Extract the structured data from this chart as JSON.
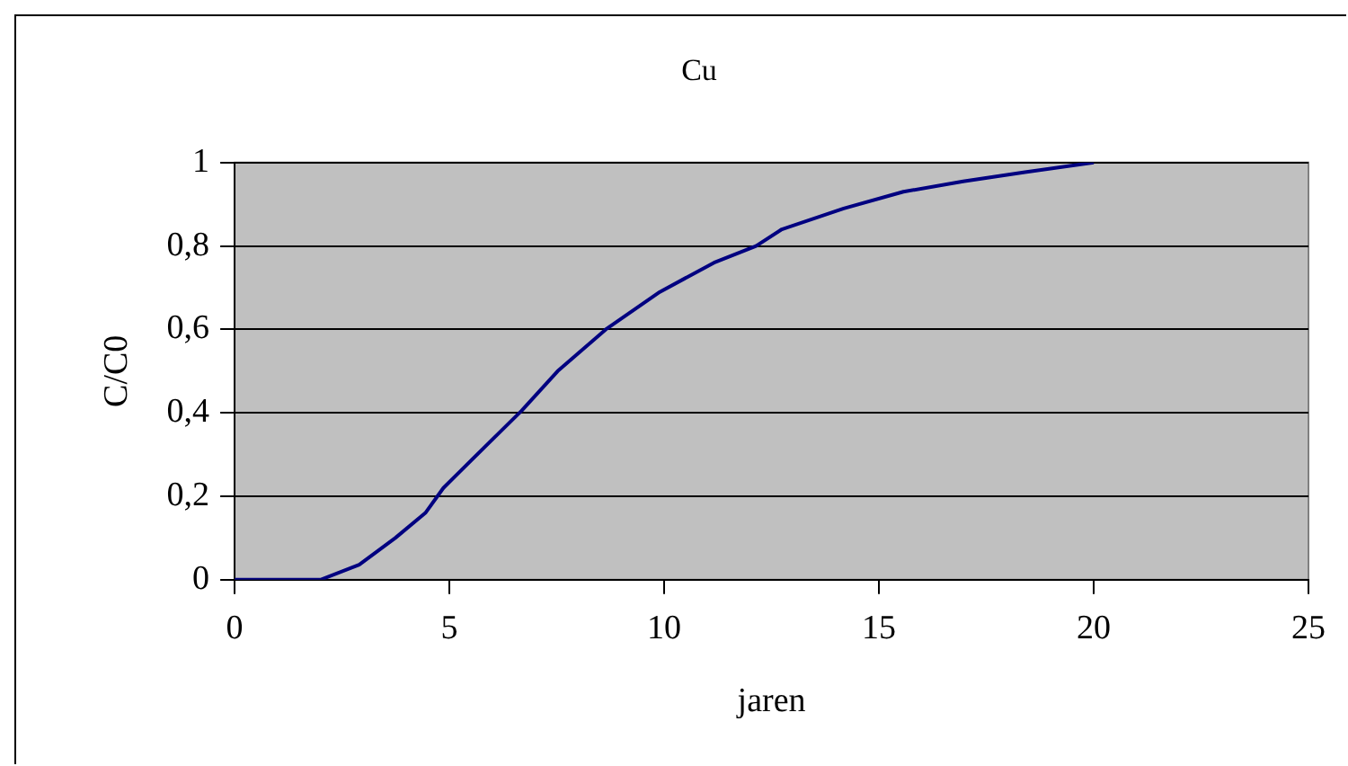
{
  "chart_data": {
    "type": "line",
    "title": "Cu",
    "xlabel": "jaren",
    "ylabel": "C/C0",
    "x": [
      0,
      2.0,
      2.9,
      3.74,
      4.44,
      4.86,
      5.84,
      6.68,
      7.52,
      8.64,
      9.9,
      11.16,
      12.14,
      12.74,
      14.18,
      15.57,
      16.96,
      18.4,
      20
    ],
    "series": [
      {
        "color": "#000080",
        "values": [
          0,
          0,
          0.036,
          0.1,
          0.16,
          0.22,
          0.32,
          0.405,
          0.5,
          0.6,
          0.69,
          0.76,
          0.8,
          0.84,
          0.89,
          0.93,
          0.955,
          0.977,
          1.0
        ]
      }
    ],
    "xlim": [
      0,
      25
    ],
    "xticks": [
      0,
      5,
      10,
      15,
      20,
      25
    ],
    "ylim": [
      0,
      1
    ],
    "yticks": [
      0,
      {
        "value": 0.2,
        "label": "0,2"
      },
      {
        "value": 0.4,
        "label": "0,4"
      },
      {
        "value": 0.6,
        "label": "0,6"
      },
      {
        "value": 0.8,
        "label": "0,8"
      },
      1
    ],
    "grid": "y",
    "legend": false,
    "marker": "none",
    "line_style": "solid"
  }
}
